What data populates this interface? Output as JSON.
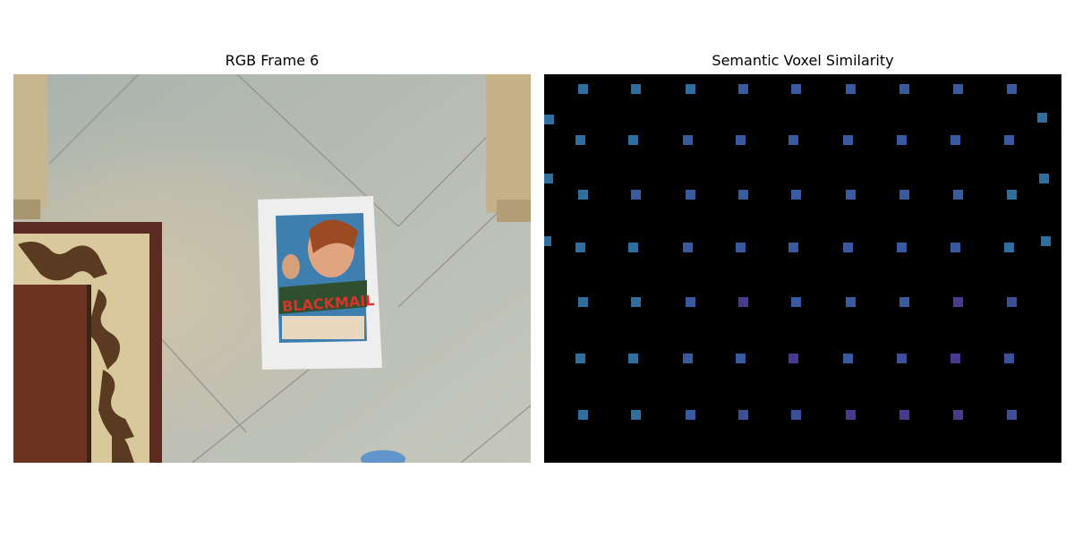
{
  "panels": {
    "left_title": "RGB Frame 6",
    "right_title": "Semantic Voxel Similarity"
  },
  "rgb_frame": {
    "poster_title": "BLACKMAIL",
    "scene": [
      "floor-tiles",
      "rug",
      "poster",
      "cabinet-left",
      "cabinet-right",
      "blue-object"
    ]
  },
  "voxel_grid": {
    "rows": [
      [
        "#2f6f9f",
        "#2f6f9f",
        "#2f6f9f",
        "#3a5a9f",
        "#3a5a9f",
        "#3a5a9f",
        "#3a5a9f",
        "#3a5a9f",
        "#3a5a9f"
      ],
      [
        "#2f6f9f",
        "#2f6f9f",
        "#3a5a9f",
        "#3a5a9f",
        "#3a5a9f",
        "#3a5a9f",
        "#3a5a9f",
        "#3a5a9f",
        "#3a5a9f"
      ],
      [
        "#2f6f9f",
        "#3a5a9f",
        "#3a5a9f",
        "#3a5a9f",
        "#3a5a9f",
        "#3a5a9f",
        "#3a5a9f",
        "#3a5a9f",
        "#2f6f9f"
      ],
      [
        "#2f6f9f",
        "#2f6f9f",
        "#3a5a9f",
        "#3a5a9f",
        "#3a5a9f",
        "#3a5a9f",
        "#3a5a9f",
        "#3a5a9f",
        "#2f6f9f"
      ],
      [
        "#2f6f9f",
        "#2f6f9f",
        "#3a5a9f",
        "#4a3a8f",
        "#3a5a9f",
        "#3a5a9f",
        "#3a5a9f",
        "#4a3a8f",
        "#3d4f99"
      ],
      [
        "#2f6f9f",
        "#2f6f9f",
        "#3a5a9f",
        "#3a5a9f",
        "#4a3a8f",
        "#3a5a9f",
        "#3d4f99",
        "#4a3a8f",
        "#3d4f99"
      ],
      [
        "#2f6f9f",
        "#2f6f9f",
        "#3a5a9f",
        "#3d4f99",
        "#3d4f99",
        "#4a3a8f",
        "#4a3a8f",
        "#4a3a8f",
        "#3d4f99"
      ]
    ],
    "edge_cells": [
      "#2f6f9f",
      "#2f6f9f",
      "#2f6f9f",
      "#2f6f9f",
      "#2f6f9f",
      "#2f6f9f"
    ]
  }
}
